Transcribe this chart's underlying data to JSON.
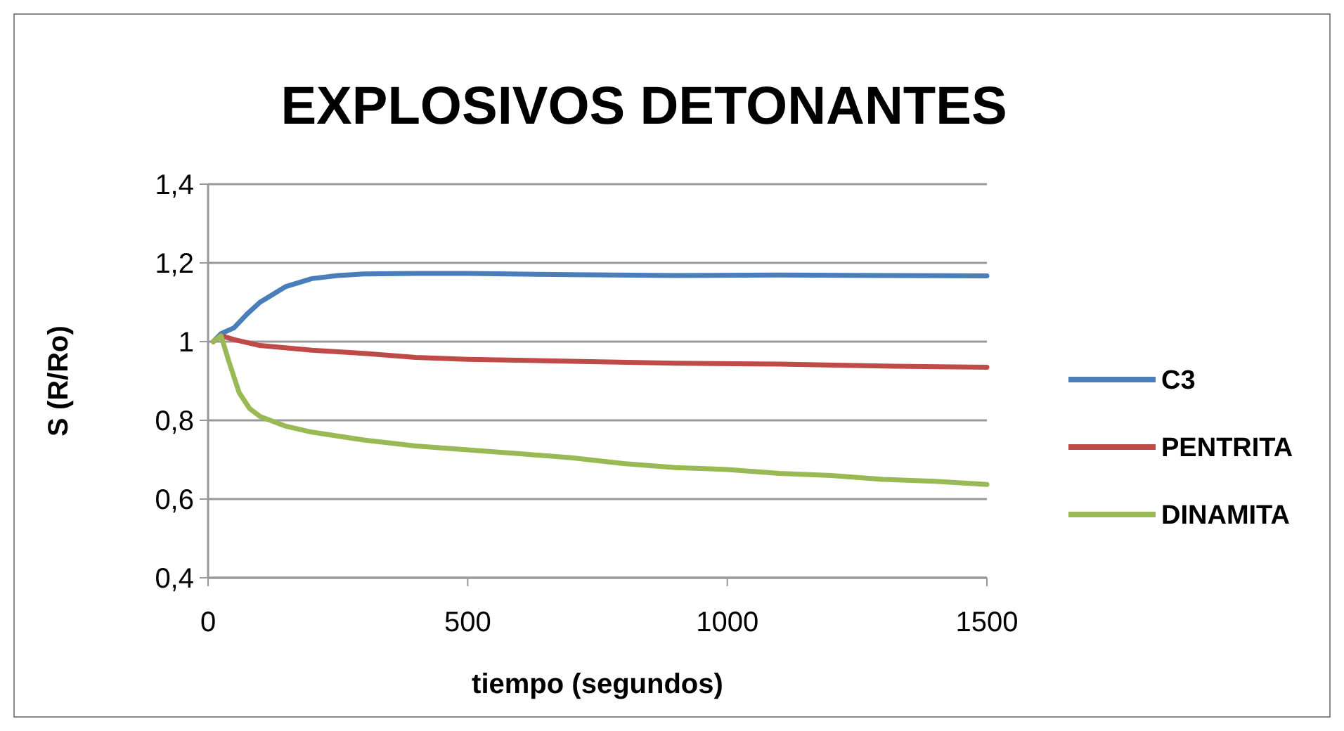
{
  "chart_data": {
    "type": "line",
    "title": "EXPLOSIVOS DETONANTES",
    "xlabel": "tiempo (segundos)",
    "ylabel": "S (R/Ro)",
    "xlim": [
      0,
      1500
    ],
    "xticks": [
      0,
      500,
      1000,
      1500
    ],
    "ylim": [
      0.4,
      1.4
    ],
    "yticks": [
      {
        "value": 0.4,
        "label": "0,4"
      },
      {
        "value": 0.6,
        "label": "0,6"
      },
      {
        "value": 0.8,
        "label": "0,8"
      },
      {
        "value": 1,
        "label": "1"
      },
      {
        "value": 1.2,
        "label": "1,2"
      },
      {
        "value": 1.4,
        "label": "1,4"
      }
    ],
    "grid": "y",
    "legend": "right",
    "marker": "none",
    "line_style": "solid",
    "series": [
      {
        "name": "C3",
        "color": "#4a7ebb",
        "x": [
          10,
          25,
          50,
          75,
          100,
          150,
          200,
          250,
          300,
          400,
          500,
          700,
          900,
          1100,
          1300,
          1500
        ],
        "values": [
          1.0,
          1.02,
          1.035,
          1.07,
          1.1,
          1.14,
          1.16,
          1.168,
          1.172,
          1.173,
          1.173,
          1.17,
          1.168,
          1.169,
          1.168,
          1.167
        ]
      },
      {
        "name": "PENTRITA",
        "color": "#be4b48",
        "x": [
          10,
          25,
          50,
          100,
          200,
          300,
          400,
          500,
          700,
          900,
          1100,
          1300,
          1500
        ],
        "values": [
          1.0,
          1.015,
          1.005,
          0.99,
          0.978,
          0.97,
          0.96,
          0.955,
          0.95,
          0.945,
          0.943,
          0.938,
          0.935
        ]
      },
      {
        "name": "DINAMITA",
        "color": "#98b954",
        "x": [
          10,
          25,
          40,
          60,
          80,
          100,
          150,
          200,
          300,
          400,
          500,
          600,
          700,
          800,
          900,
          1000,
          1100,
          1200,
          1300,
          1400,
          1500
        ],
        "values": [
          1.0,
          1.015,
          0.95,
          0.87,
          0.83,
          0.81,
          0.785,
          0.77,
          0.75,
          0.735,
          0.725,
          0.715,
          0.705,
          0.69,
          0.68,
          0.675,
          0.665,
          0.66,
          0.65,
          0.645,
          0.637
        ]
      }
    ]
  }
}
